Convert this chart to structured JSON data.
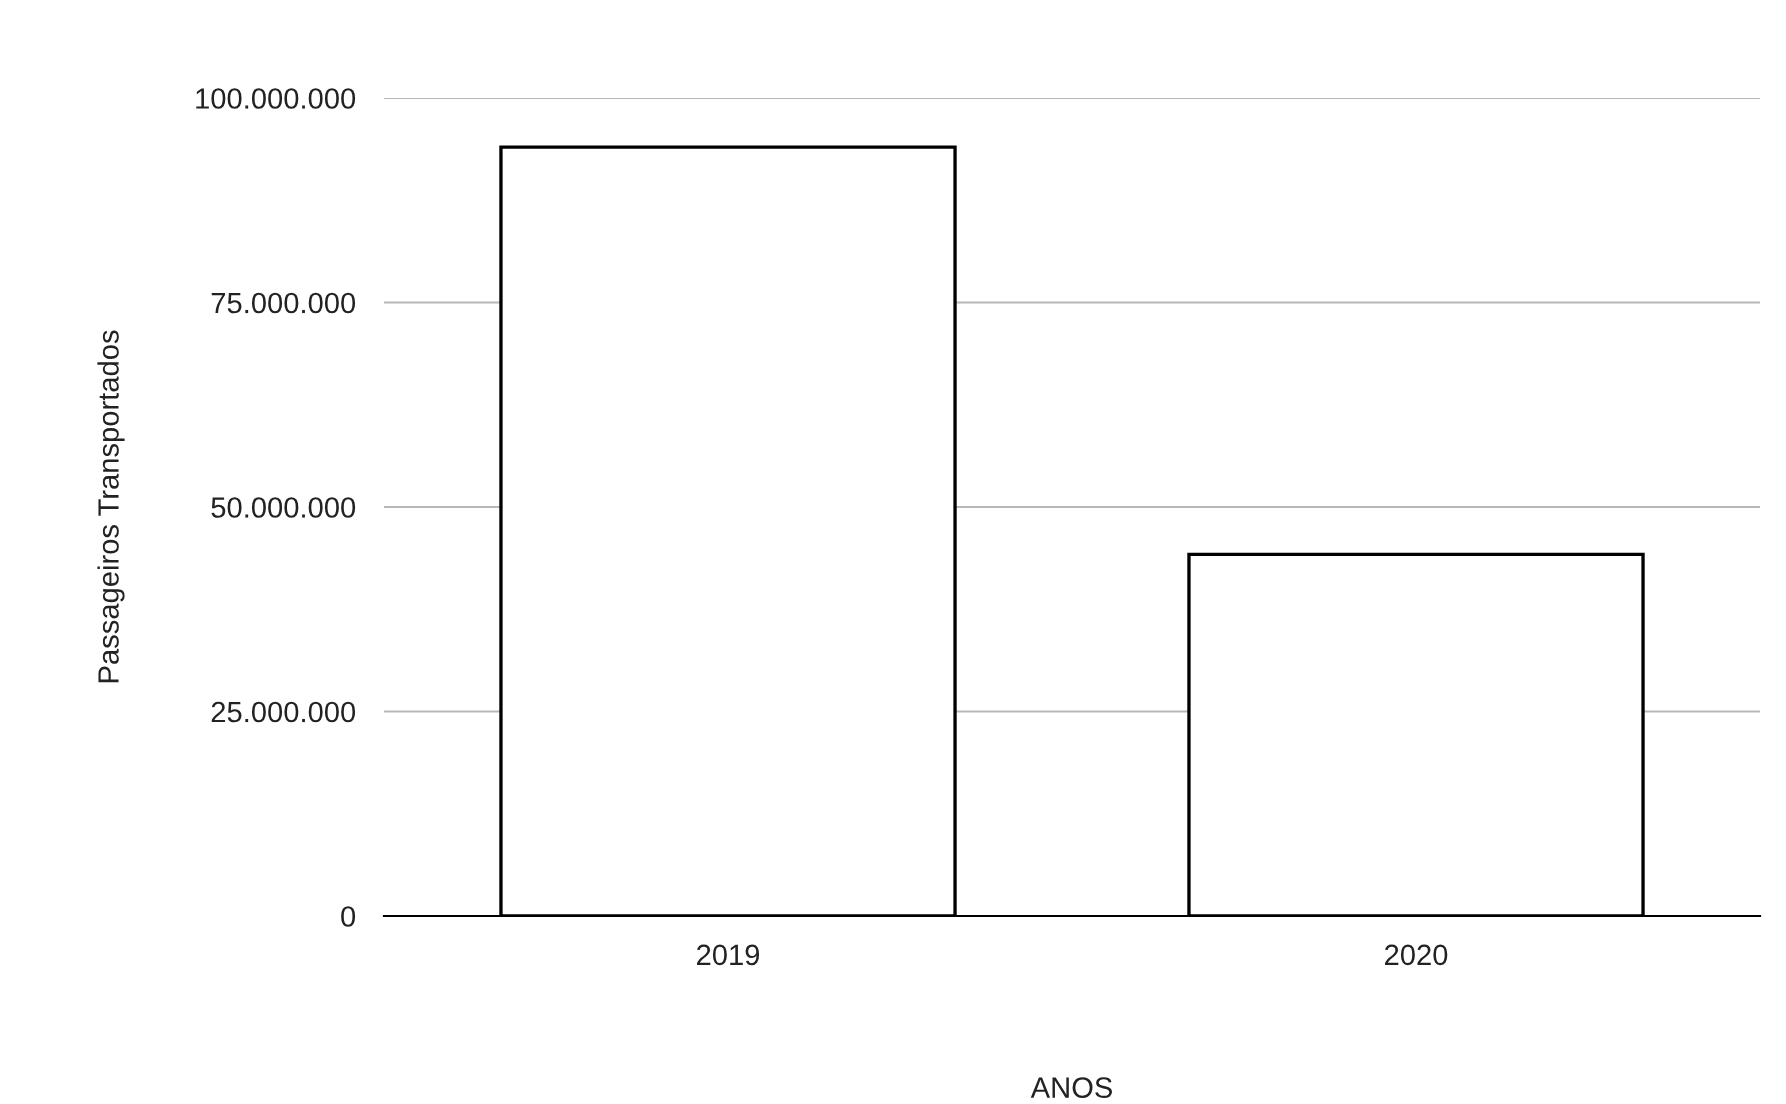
{
  "chart_data": {
    "type": "bar",
    "xlabel": "ANOS",
    "ylabel": "Passageiros Transportados",
    "categories": [
      "2019",
      "2020"
    ],
    "values": [
      94000000,
      44200000
    ],
    "color": "#ffffff",
    "ylim": [
      0,
      100000000
    ],
    "yticks": [
      {
        "value": 0,
        "label": "0"
      },
      {
        "value": 25000000,
        "label": "25.000.000"
      },
      {
        "value": 50000000,
        "label": "50.000.000"
      },
      {
        "value": 75000000,
        "label": "75.000.000"
      },
      {
        "value": 100000000,
        "label": "100.000.000"
      }
    ],
    "grid": "y",
    "legend": false
  }
}
